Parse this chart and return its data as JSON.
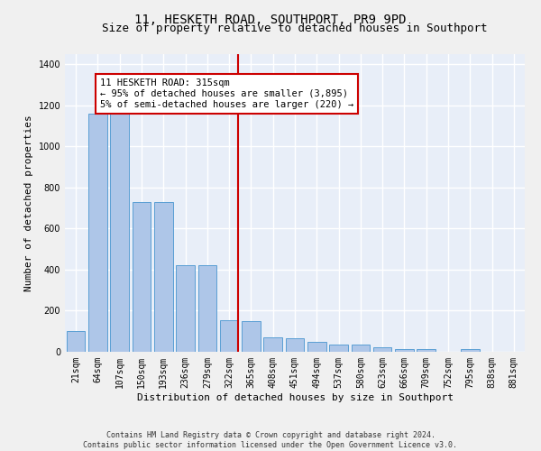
{
  "title": "11, HESKETH ROAD, SOUTHPORT, PR9 9PD",
  "subtitle": "Size of property relative to detached houses in Southport",
  "xlabel": "Distribution of detached houses by size in Southport",
  "ylabel": "Number of detached properties",
  "bar_labels": [
    "21sqm",
    "64sqm",
    "107sqm",
    "150sqm",
    "193sqm",
    "236sqm",
    "279sqm",
    "322sqm",
    "365sqm",
    "408sqm",
    "451sqm",
    "494sqm",
    "537sqm",
    "580sqm",
    "623sqm",
    "666sqm",
    "709sqm",
    "752sqm",
    "795sqm",
    "838sqm",
    "881sqm"
  ],
  "bar_heights": [
    100,
    1160,
    1160,
    730,
    730,
    420,
    420,
    155,
    150,
    70,
    65,
    50,
    35,
    35,
    20,
    15,
    15,
    0,
    15,
    0,
    0
  ],
  "bar_color": "#aec6e8",
  "bar_edge_color": "#5a9fd4",
  "highlight_bar_index": 7,
  "vline_color": "#cc0000",
  "annotation_text": "11 HESKETH ROAD: 315sqm\n← 95% of detached houses are smaller (3,895)\n5% of semi-detached houses are larger (220) →",
  "annotation_box_color": "#cc0000",
  "ylim": [
    0,
    1450
  ],
  "yticks": [
    0,
    200,
    400,
    600,
    800,
    1000,
    1200,
    1400
  ],
  "footnote": "Contains HM Land Registry data © Crown copyright and database right 2024.\nContains public sector information licensed under the Open Government Licence v3.0.",
  "bg_color": "#e8eef8",
  "grid_color": "#ffffff",
  "fig_bg_color": "#f0f0f0",
  "title_fontsize": 10,
  "subtitle_fontsize": 9,
  "axis_label_fontsize": 8,
  "tick_fontsize": 7,
  "annotation_fontsize": 7.5,
  "footnote_fontsize": 6
}
